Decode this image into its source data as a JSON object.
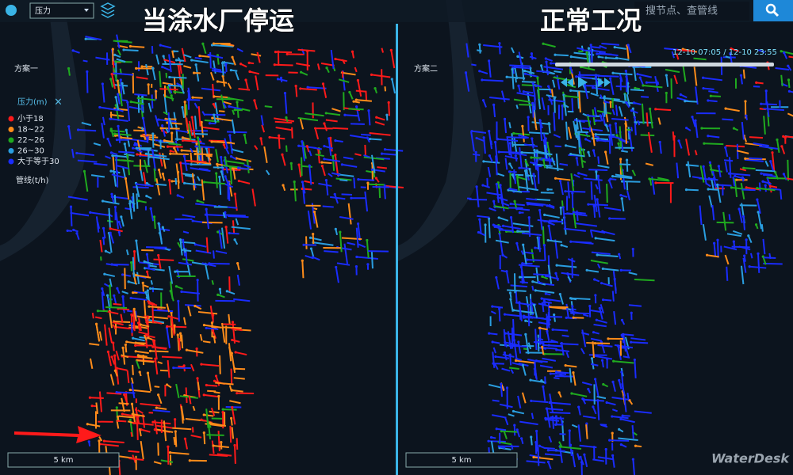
{
  "toolbar": {
    "dropdown": "压力",
    "search_placeholder": "搜节点、查管线"
  },
  "panels": [
    {
      "title": "当涂水厂停运",
      "scheme": "方案一",
      "scale": "5 km"
    },
    {
      "title": "正常工况",
      "scheme": "方案二",
      "scale": "5 km",
      "time": "12-10 07:05 / 12-10 23:55"
    }
  ],
  "legend": {
    "title": "压力(m)",
    "items": [
      {
        "label": "小于18",
        "color": "#ff1a1a"
      },
      {
        "label": "18~22",
        "color": "#ff8c1a"
      },
      {
        "label": "22~26",
        "color": "#1faa1f"
      },
      {
        "label": "26~30",
        "color": "#2a9ee0"
      },
      {
        "label": "大于等于30",
        "color": "#1a2cff"
      }
    ],
    "pipe_label": "管线(t/h)"
  },
  "watermark": "WaterDesk"
}
